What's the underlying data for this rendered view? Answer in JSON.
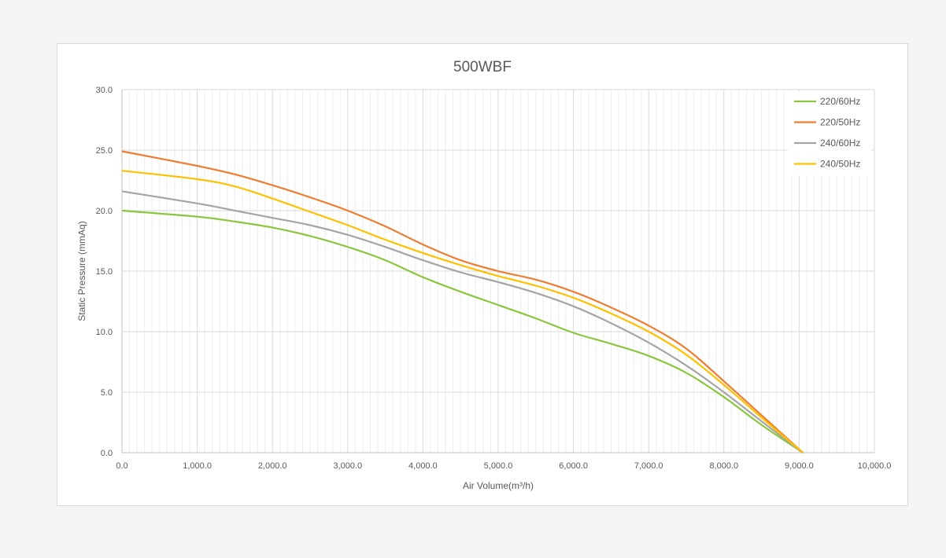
{
  "chart_data": {
    "type": "line",
    "title": "500WBF",
    "xlabel": "Air Volume(m³/h)",
    "ylabel": "Static Pressure (mmAq)",
    "xlim": [
      0,
      10000
    ],
    "ylim": [
      0,
      30
    ],
    "x_ticks": [
      "0.0",
      "1,000.0",
      "2,000.0",
      "3,000.0",
      "4,000.0",
      "5,000.0",
      "6,000.0",
      "7,000.0",
      "8,000.0",
      "9,000.0",
      "10,000.0"
    ],
    "y_ticks": [
      "0.0",
      "5.0",
      "10.0",
      "15.0",
      "20.0",
      "25.0",
      "30.0"
    ],
    "x_tick_values": [
      0,
      1000,
      2000,
      3000,
      4000,
      5000,
      6000,
      7000,
      8000,
      9000,
      10000
    ],
    "y_tick_values": [
      0,
      5,
      10,
      15,
      20,
      25,
      30
    ],
    "grid": true,
    "legend_position": "top-right",
    "series": [
      {
        "name": "220/60Hz",
        "color": "#8cc63f",
        "x": [
          0,
          1000,
          1500,
          2000,
          2500,
          3000,
          3500,
          4000,
          4500,
          5000,
          5500,
          6000,
          6500,
          7000,
          7500,
          8000,
          8500,
          9050
        ],
        "y": [
          20.0,
          19.5,
          19.1,
          18.6,
          17.9,
          17.0,
          15.9,
          14.5,
          13.3,
          12.2,
          11.1,
          9.9,
          9.0,
          8.0,
          6.6,
          4.6,
          2.3,
          0.0
        ]
      },
      {
        "name": "220/50Hz",
        "color": "#ed7d31",
        "x": [
          0,
          1000,
          1500,
          2000,
          2500,
          3000,
          3500,
          4000,
          4500,
          5000,
          5500,
          6000,
          6500,
          7000,
          7500,
          8000,
          8500,
          9050
        ],
        "y": [
          24.9,
          23.7,
          23.0,
          22.1,
          21.1,
          20.0,
          18.7,
          17.2,
          15.9,
          15.0,
          14.3,
          13.3,
          12.0,
          10.5,
          8.6,
          5.9,
          3.1,
          0.0
        ]
      },
      {
        "name": "240/60Hz",
        "color": "#a5a5a5",
        "x": [
          0,
          1000,
          1500,
          2000,
          2500,
          3000,
          3500,
          4000,
          4500,
          5000,
          5500,
          6000,
          6500,
          7000,
          7500,
          8000,
          8500,
          9050
        ],
        "y": [
          21.6,
          20.6,
          20.0,
          19.4,
          18.8,
          18.0,
          17.0,
          15.9,
          14.9,
          14.1,
          13.2,
          12.1,
          10.7,
          9.1,
          7.2,
          5.0,
          2.6,
          0.0
        ]
      },
      {
        "name": "240/50Hz",
        "color": "#ffc000",
        "x": [
          0,
          1000,
          1500,
          2000,
          2500,
          3000,
          3500,
          4000,
          4500,
          5000,
          5500,
          6000,
          6500,
          7000,
          7500,
          8000,
          8500,
          9050
        ],
        "y": [
          23.3,
          22.6,
          22.0,
          21.0,
          19.9,
          18.8,
          17.6,
          16.5,
          15.5,
          14.6,
          13.8,
          12.8,
          11.5,
          10.0,
          8.1,
          5.6,
          2.9,
          0.0
        ]
      }
    ],
    "colors": {
      "grid_major": "#d9d9d9",
      "grid_minor": "#ededed",
      "axis": "#bfbfbf",
      "text": "#595959"
    }
  }
}
